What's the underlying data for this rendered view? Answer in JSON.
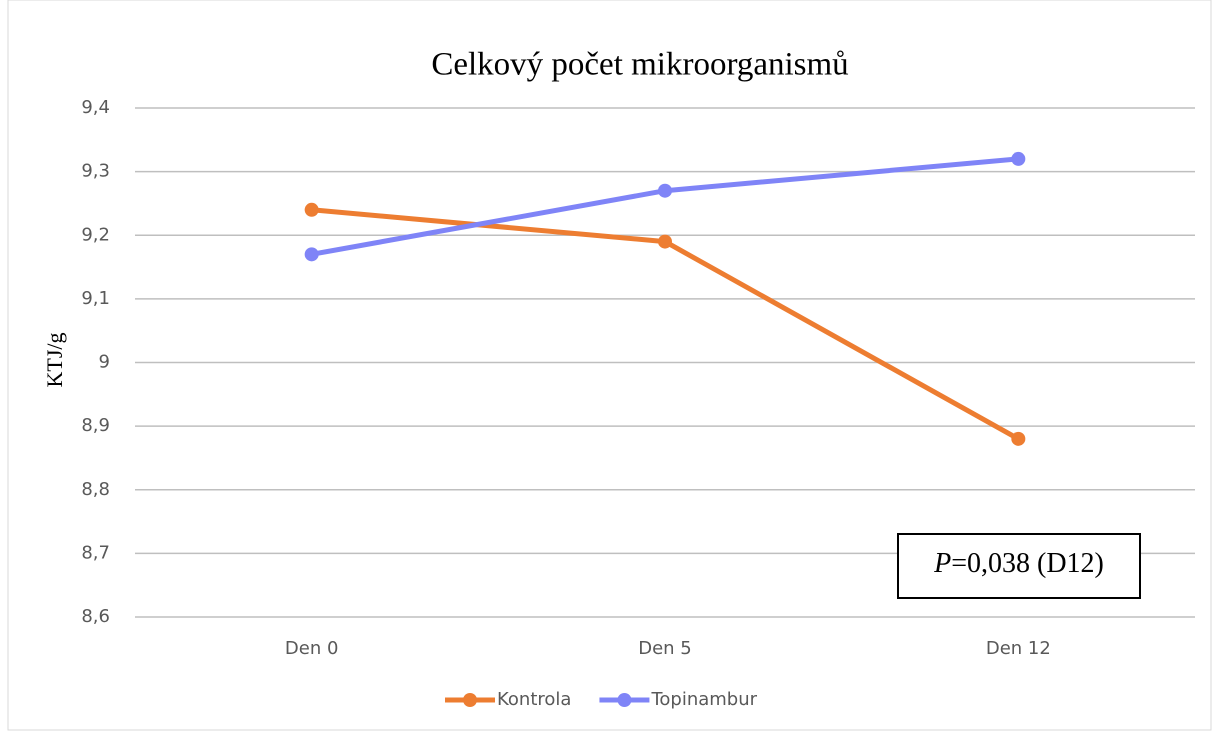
{
  "chart_data": {
    "type": "line",
    "title": "Celkový počet mikroorganismů",
    "y_label": "KTJ/g",
    "categories": [
      "Den 0",
      "Den 5",
      "Den 12"
    ],
    "series": [
      {
        "name": "Kontrola",
        "color": "#ED7D31",
        "values": [
          9.24,
          9.19,
          8.88
        ]
      },
      {
        "name": "Topinambur",
        "color": "#7F84F7",
        "values": [
          9.17,
          9.27,
          9.32
        ]
      }
    ],
    "ylim": [
      8.6,
      9.4
    ],
    "yticks": [
      {
        "value": 8.6,
        "label": "8,6"
      },
      {
        "value": 8.7,
        "label": "8,7"
      },
      {
        "value": 8.8,
        "label": "8,8"
      },
      {
        "value": 8.9,
        "label": "8,9"
      },
      9,
      {
        "value": 9.1,
        "label": "9,1"
      },
      {
        "value": 9.2,
        "label": "9,2"
      },
      {
        "value": 9.3,
        "label": "9,3"
      },
      {
        "value": 9.4,
        "label": "9,4"
      }
    ],
    "grid": true,
    "legend": "bottom",
    "annotation": {
      "italic": "P",
      "text": "=0,038 (D12)"
    }
  }
}
